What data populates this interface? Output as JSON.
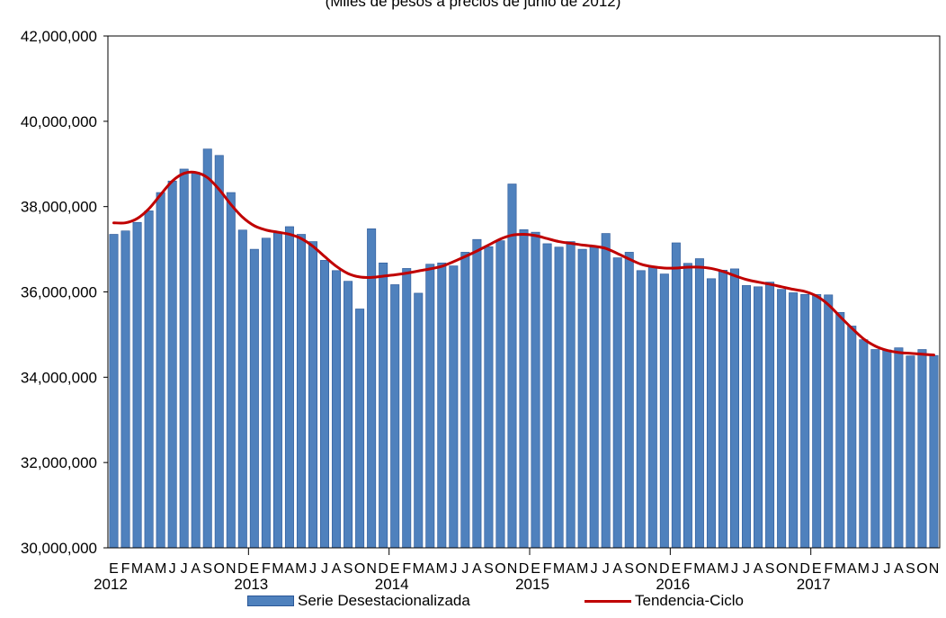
{
  "chart_data": {
    "type": "bar",
    "subtitle": "(Miles de pesos a precios de junio de 2012)",
    "ylim": [
      30000000,
      42000000
    ],
    "yticks": [
      30000000,
      32000000,
      34000000,
      36000000,
      38000000,
      40000000,
      42000000
    ],
    "ytick_labels": [
      "30,000,000",
      "32,000,000",
      "34,000,000",
      "36,000,000",
      "38,000,000",
      "40,000,000",
      "42,000,000"
    ],
    "month_letters": [
      "E",
      "F",
      "M",
      "A",
      "M",
      "J",
      "J",
      "A",
      "S",
      "O",
      "N",
      "D"
    ],
    "years": [
      "2012",
      "2013",
      "2014",
      "2015",
      "2016",
      "2017"
    ],
    "n_months": 71,
    "legend_position": "bottom",
    "grid": false,
    "series": [
      {
        "name": "Serie Desestacionalizada",
        "kind": "bar",
        "color": "#4f81bd",
        "values": [
          37350000,
          37430000,
          37630000,
          37900000,
          38330000,
          38600000,
          38880000,
          38800000,
          39350000,
          39200000,
          38330000,
          37450000,
          37000000,
          37260000,
          37380000,
          37530000,
          37350000,
          37180000,
          36740000,
          36500000,
          36250000,
          35600000,
          37480000,
          36680000,
          36170000,
          36550000,
          35970000,
          36650000,
          36680000,
          36610000,
          36930000,
          37230000,
          37060000,
          37200000,
          38530000,
          37460000,
          37400000,
          37130000,
          37050000,
          37180000,
          37000000,
          37050000,
          37370000,
          36800000,
          36930000,
          36500000,
          36580000,
          36420000,
          37150000,
          36670000,
          36780000,
          36310000,
          36510000,
          36540000,
          36150000,
          36120000,
          36230000,
          36060000,
          35980000,
          35940000,
          35940000,
          35930000,
          35520000,
          35200000,
          34880000,
          34650000,
          34640000,
          34690000,
          34500000,
          34650000,
          34510000
        ]
      },
      {
        "name": "Tendencia-Ciclo",
        "kind": "line",
        "color": "#c00000",
        "values": [
          37620000,
          37620000,
          37720000,
          37950000,
          38280000,
          38600000,
          38780000,
          38800000,
          38680000,
          38400000,
          38050000,
          37750000,
          37550000,
          37450000,
          37400000,
          37350000,
          37250000,
          37070000,
          36830000,
          36600000,
          36430000,
          36350000,
          36340000,
          36370000,
          36400000,
          36440000,
          36490000,
          36540000,
          36600000,
          36710000,
          36830000,
          36960000,
          37100000,
          37240000,
          37330000,
          37350000,
          37320000,
          37250000,
          37180000,
          37140000,
          37100000,
          37070000,
          37020000,
          36900000,
          36770000,
          36650000,
          36590000,
          36560000,
          36560000,
          36580000,
          36580000,
          36550000,
          36480000,
          36380000,
          36290000,
          36230000,
          36180000,
          36120000,
          36060000,
          36010000,
          35900000,
          35700000,
          35420000,
          35150000,
          34900000,
          34730000,
          34630000,
          34580000,
          34560000,
          34540000,
          34520000
        ]
      }
    ]
  }
}
